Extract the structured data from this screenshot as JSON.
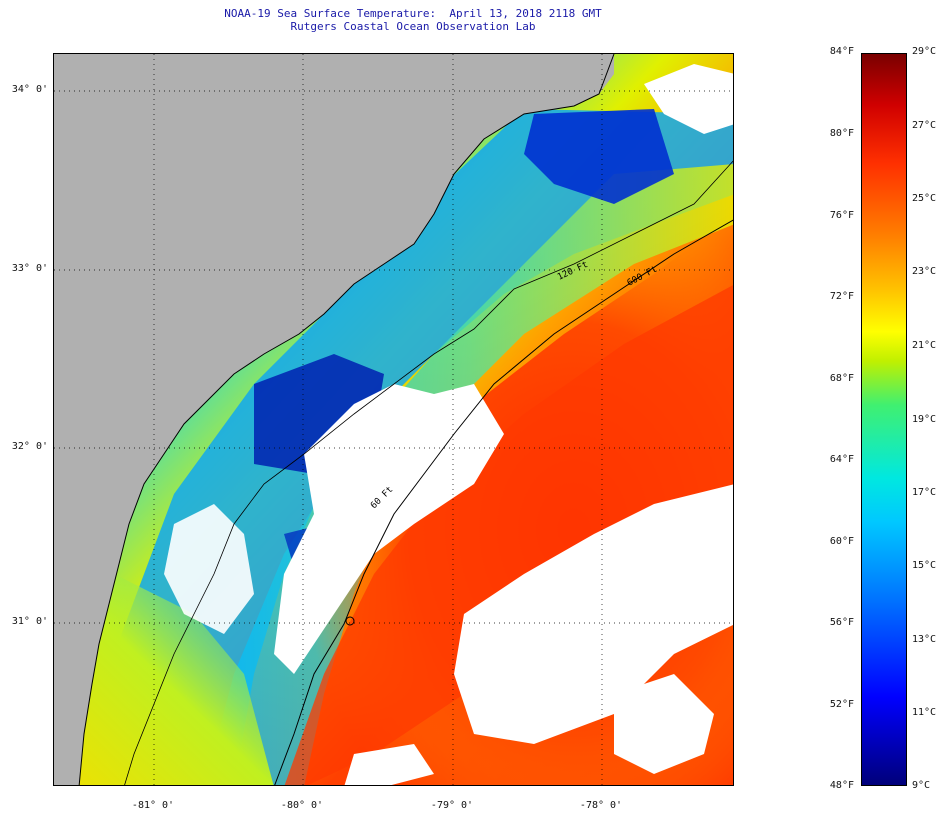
{
  "title": {
    "line1": "NOAA-19 Sea Surface Temperature:  April 13, 2018 2118 GMT",
    "line2": "Rutgers Coastal Ocean Observation Lab"
  },
  "map": {
    "lat_labels": [
      "34° 0'",
      "33° 0'",
      "32° 0'",
      "31° 0'"
    ],
    "lon_labels": [
      "-81° 0'",
      "-80° 0'",
      "-79° 0'",
      "-78° 0'"
    ],
    "contours": {
      "c120": "120 Ft",
      "c600": "600 Ft",
      "c60": "60 Ft"
    },
    "colors": {
      "land": "#b0b0b0",
      "cloud": "#ffffff"
    }
  },
  "colorbar": {
    "fahrenheit": [
      "84°F",
      "80°F",
      "76°F",
      "72°F",
      "68°F",
      "64°F",
      "60°F",
      "56°F",
      "52°F",
      "48°F"
    ],
    "celsius": [
      "29°C",
      "27°C",
      "25°C",
      "23°C",
      "21°C",
      "19°C",
      "17°C",
      "15°C",
      "13°C",
      "11°C",
      "9°C"
    ]
  }
}
